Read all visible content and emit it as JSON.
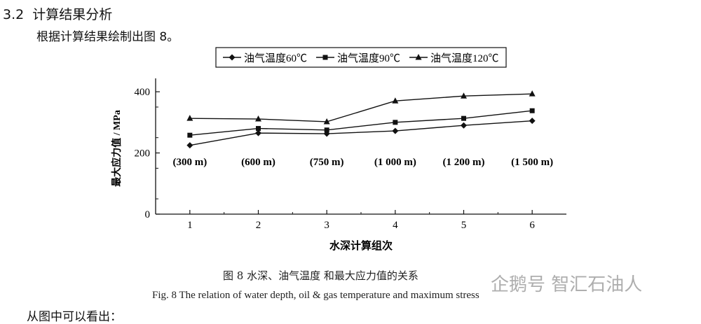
{
  "section": {
    "number": "3.2",
    "title": "计算结果分析"
  },
  "paragraph": "根据计算结果绘制出图 8。",
  "chart_data": {
    "type": "line",
    "x": [
      1,
      2,
      3,
      4,
      5,
      6
    ],
    "series": [
      {
        "name": "油气温度60℃",
        "marker": "diamond",
        "values": [
          225,
          265,
          263,
          272,
          290,
          305
        ]
      },
      {
        "name": "油气温度90℃",
        "marker": "square",
        "values": [
          258,
          280,
          275,
          300,
          313,
          338
        ]
      },
      {
        "name": "油气温度120℃",
        "marker": "triangle",
        "values": [
          313,
          311,
          302,
          370,
          386,
          393
        ]
      }
    ],
    "annotations": [
      "(300 m)",
      "(600 m)",
      "(750 m)",
      "(1 000 m)",
      "(1 200 m)",
      "(1 500 m)"
    ],
    "xlabel": "水深计算组次",
    "ylabel": "最大应力值 / MPa",
    "xticks": [
      "1",
      "2",
      "3",
      "4",
      "5",
      "6"
    ],
    "yticks": [
      "0",
      "200",
      "400"
    ],
    "xlim": [
      0.5,
      6.5
    ],
    "ylim": [
      0,
      430
    ],
    "legend": "top"
  },
  "caption": {
    "cn": "图 8   水深、油气温度 和最大应力值的关系",
    "en": "Fig. 8   The relation of water depth, oil & gas temperature and maximum stress"
  },
  "watermark": "企鹅号 智汇石油人",
  "next_line": "从图中可以看出："
}
